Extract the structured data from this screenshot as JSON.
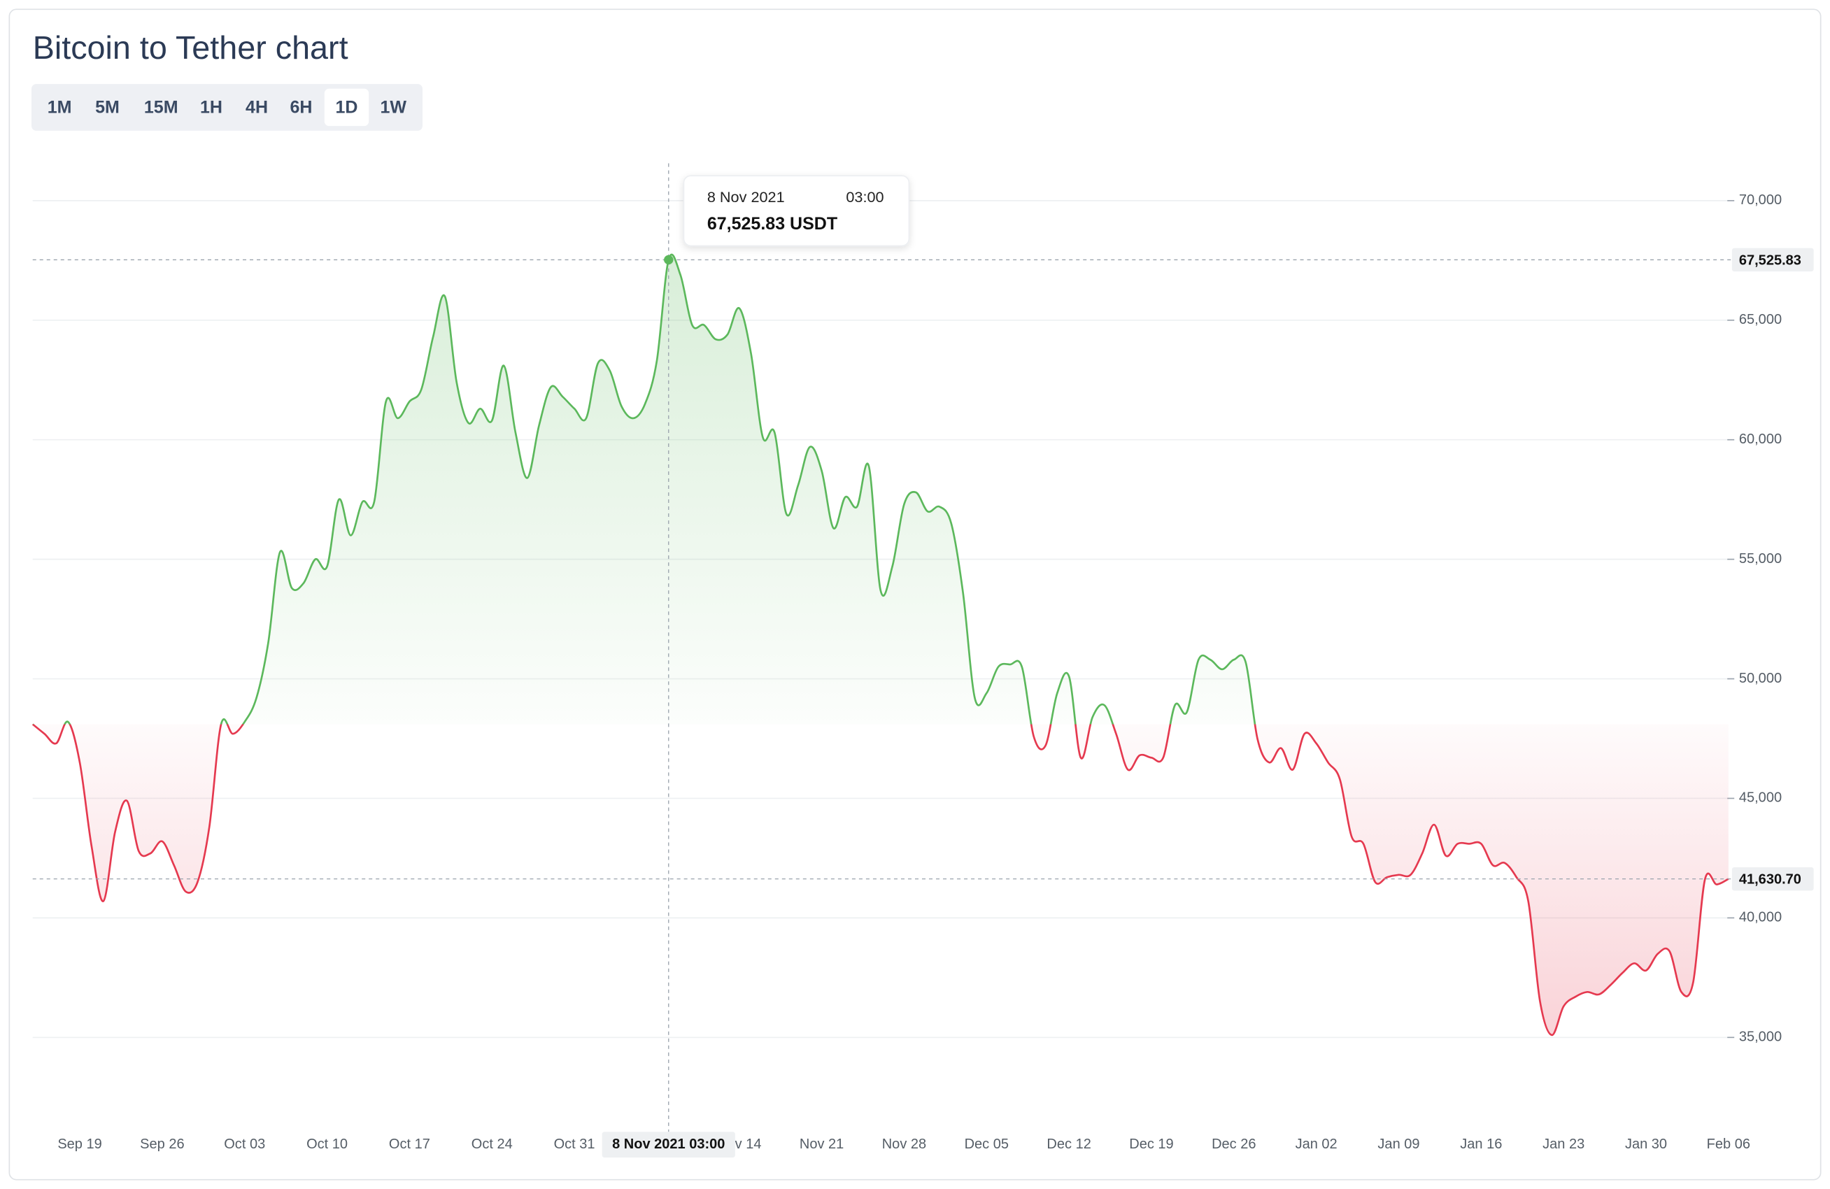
{
  "chart_data": {
    "type": "line",
    "title": "Bitcoin to Tether chart",
    "intervals": [
      "1M",
      "5M",
      "15M",
      "1H",
      "4H",
      "6H",
      "1D",
      "1W"
    ],
    "active_interval": "1D",
    "colors": {
      "up": "#5cb85c",
      "down": "#e5394f"
    },
    "categories": [
      null,
      null,
      null,
      null,
      "Sep 19",
      null,
      null,
      null,
      null,
      null,
      null,
      "Sep 26",
      null,
      null,
      null,
      null,
      null,
      null,
      "Oct 03",
      null,
      null,
      null,
      null,
      null,
      null,
      "Oct 10",
      null,
      null,
      null,
      null,
      null,
      null,
      "Oct 17",
      null,
      null,
      null,
      null,
      null,
      null,
      "Oct 24",
      null,
      null,
      null,
      null,
      null,
      null,
      "Oct 31",
      null,
      null,
      null,
      null,
      null,
      null,
      null,
      null,
      null,
      null,
      null,
      null,
      null,
      "Nov 14",
      null,
      null,
      null,
      null,
      null,
      null,
      "Nov 21",
      null,
      null,
      null,
      null,
      null,
      null,
      "Nov 28",
      null,
      null,
      null,
      null,
      null,
      null,
      "Dec 05",
      null,
      null,
      null,
      null,
      null,
      null,
      "Dec 12",
      null,
      null,
      null,
      null,
      null,
      null,
      "Dec 19",
      null,
      null,
      null,
      null,
      null,
      null,
      "Dec 26",
      null,
      null,
      null,
      null,
      null,
      null,
      "Jan 02",
      null,
      null,
      null,
      null,
      null,
      null,
      "Jan 09",
      null,
      null,
      null,
      null,
      null,
      null,
      "Jan 16",
      null,
      null,
      null,
      null,
      null,
      null,
      "Jan 23",
      null,
      null,
      null,
      null,
      null,
      null,
      "Jan 30",
      null,
      null,
      null,
      null,
      null,
      null,
      "Feb 06"
    ],
    "values": [
      48100,
      47700,
      47300,
      48200,
      46500,
      43000,
      40700,
      43600,
      44900,
      42800,
      42700,
      43200,
      42200,
      41100,
      41500,
      43800,
      48100,
      47700,
      48200,
      49200,
      51500,
      55300,
      53800,
      54000,
      55000,
      54700,
      57500,
      56000,
      57400,
      57400,
      61600,
      60900,
      61600,
      62100,
      64300,
      66000,
      62400,
      60700,
      61300,
      60800,
      63100,
      60300,
      58400,
      60600,
      62200,
      61800,
      61300,
      60900,
      63200,
      62900,
      61400,
      60900,
      61500,
      63300,
      67525.83,
      66900,
      64800,
      64800,
      64200,
      64400,
      65500,
      63600,
      60100,
      60300,
      56900,
      58100,
      59700,
      58700,
      56300,
      57600,
      57200,
      58900,
      53700,
      54700,
      57300,
      57800,
      57000,
      57200,
      56500,
      53600,
      49200,
      49400,
      50500,
      50600,
      50500,
      47600,
      47200,
      49400,
      50100,
      46700,
      48400,
      48900,
      47700,
      46200,
      46800,
      46700,
      46700,
      48900,
      48600,
      50800,
      50800,
      50400,
      50800,
      50700,
      47500,
      46500,
      47100,
      46200,
      47700,
      47300,
      46500,
      45800,
      43400,
      43100,
      41500,
      41700,
      41800,
      41800,
      42700,
      43900,
      42600,
      43100,
      43100,
      43100,
      42200,
      42300,
      41700,
      40700,
      36500,
      35100,
      36300,
      36700,
      36900,
      36800,
      37200,
      37700,
      38100,
      37800,
      38500,
      38600,
      36900,
      37300,
      41600,
      41400,
      41630.7
    ],
    "ylim": [
      31540,
      71560
    ],
    "yticks": [
      {
        "value": 35000,
        "label": "35,000"
      },
      {
        "value": 40000,
        "label": "40,000"
      },
      {
        "value": 45000,
        "label": "45,000"
      },
      {
        "value": 50000,
        "label": "50,000"
      },
      {
        "value": 55000,
        "label": "55,000"
      },
      {
        "value": 60000,
        "label": "60,000"
      },
      {
        "value": 65000,
        "label": "65,000"
      },
      {
        "value": 70000,
        "label": "70,000"
      }
    ],
    "grid": true,
    "crosshair": {
      "value": 67525.83,
      "date": "8 Nov 2021",
      "time": "03:00",
      "tooltip_label": "67,525.83 USDT",
      "price_label": "67,525.83",
      "x_label": "8 Nov 2021 03:00"
    },
    "last_price_label": "41,630.70"
  }
}
